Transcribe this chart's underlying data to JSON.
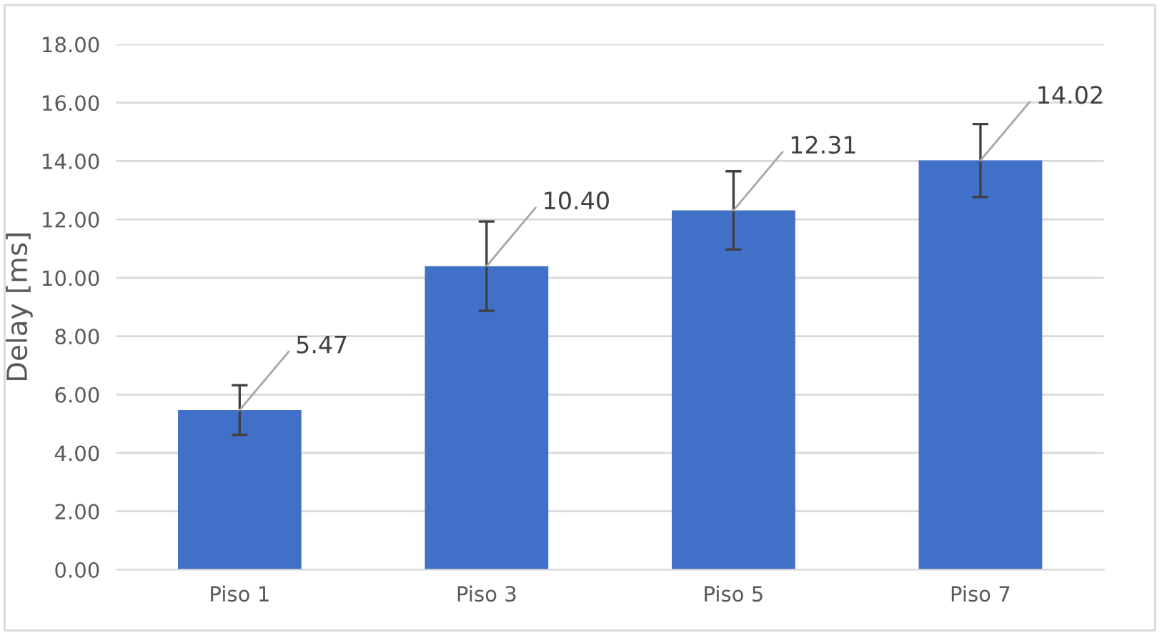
{
  "chart_data": {
    "type": "bar",
    "ylabel": "Delay [ms]",
    "categories": [
      "Piso 1",
      "Piso 3",
      "Piso 5",
      "Piso 7"
    ],
    "values": [
      5.47,
      10.4,
      12.31,
      14.02
    ],
    "errors": [
      0.85,
      1.53,
      1.34,
      1.25
    ],
    "value_labels": [
      "5.47",
      "10.40",
      "12.31",
      "14.02"
    ],
    "color": "#4170c8",
    "ylim": [
      0,
      18
    ],
    "yticks": [
      {
        "value": 0,
        "label": "0.00"
      },
      {
        "value": 2,
        "label": "2.00"
      },
      {
        "value": 4,
        "label": "4.00"
      },
      {
        "value": 6,
        "label": "6.00"
      },
      {
        "value": 8,
        "label": "8.00"
      },
      {
        "value": 10,
        "label": "10.00"
      },
      {
        "value": 12,
        "label": "12.00"
      },
      {
        "value": 14,
        "label": "14.00"
      },
      {
        "value": 16,
        "label": "16.00"
      },
      {
        "value": 18,
        "label": "18.00"
      }
    ],
    "grid": "y"
  }
}
